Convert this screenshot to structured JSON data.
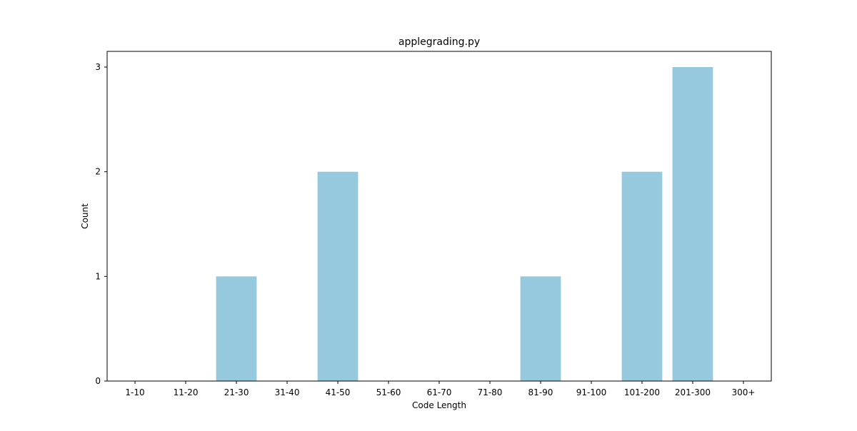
{
  "chart_data": {
    "type": "bar",
    "title": "applegrading.py",
    "xlabel": "Code Length",
    "ylabel": "Count",
    "categories": [
      "1-10",
      "11-20",
      "21-30",
      "31-40",
      "41-50",
      "51-60",
      "61-70",
      "71-80",
      "81-90",
      "91-100",
      "101-200",
      "201-300",
      "300+"
    ],
    "values": [
      0,
      0,
      1,
      0,
      2,
      0,
      0,
      0,
      1,
      0,
      2,
      3,
      0
    ],
    "yticks": [
      "0",
      "1",
      "2",
      "3"
    ],
    "ylim": [
      0,
      3.15
    ],
    "grid": false,
    "legend": "none",
    "bar_color": "#96c9dd",
    "axis_color": "#000000"
  }
}
